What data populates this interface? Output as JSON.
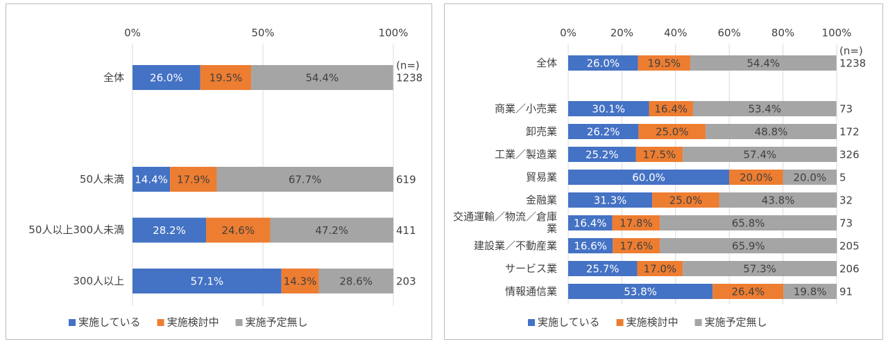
{
  "chart_data": [
    {
      "type": "stacked-bar-horizontal",
      "categories": [
        "全体",
        null,
        "50人未満",
        "50人以上300人未満",
        "300人以上"
      ],
      "series": [
        {
          "name": "実施している",
          "color": "#4472c4",
          "values": [
            26.0,
            null,
            14.4,
            28.2,
            57.1
          ],
          "value_labels": [
            "26.0%",
            null,
            "14.4%",
            "28.2%",
            "57.1%"
          ]
        },
        {
          "name": "実施検討中",
          "color": "#ed7d31",
          "values": [
            19.5,
            null,
            17.9,
            24.6,
            14.3
          ],
          "value_labels": [
            "19.5%",
            null,
            "17.9%",
            "24.6%",
            "14.3%"
          ]
        },
        {
          "name": "実施予定無し",
          "color": "#a5a5a5",
          "values": [
            54.4,
            null,
            67.7,
            47.2,
            28.6
          ],
          "value_labels": [
            "54.4%",
            null,
            "67.7%",
            "47.2%",
            "28.6%"
          ]
        }
      ],
      "n_label": "(n=)",
      "n": [
        1238,
        null,
        619,
        411,
        203
      ],
      "xlim": [
        0,
        100
      ],
      "xticks": [
        {
          "value": 0,
          "label": "0%"
        },
        {
          "value": 50,
          "label": "50%"
        },
        {
          "value": 100,
          "label": "100%"
        }
      ],
      "grid": true,
      "legend": "bottom"
    },
    {
      "type": "stacked-bar-horizontal",
      "categories": [
        "全体",
        null,
        "商業／小売業",
        "卸売業",
        "工業／製造業",
        "貿易業",
        "金融業",
        "交通運輸／物流／倉庫業",
        "建設業／不動産業",
        "サービス業",
        "情報通信業"
      ],
      "series": [
        {
          "name": "実施している",
          "color": "#4472c4",
          "values": [
            26.0,
            null,
            30.1,
            26.2,
            25.2,
            60.0,
            31.3,
            16.4,
            16.6,
            25.7,
            53.8
          ],
          "value_labels": [
            "26.0%",
            null,
            "30.1%",
            "26.2%",
            "25.2%",
            "60.0%",
            "31.3%",
            "16.4%",
            "16.6%",
            "25.7%",
            "53.8%"
          ]
        },
        {
          "name": "実施検討中",
          "color": "#ed7d31",
          "values": [
            19.5,
            null,
            16.4,
            25.0,
            17.5,
            20.0,
            25.0,
            17.8,
            17.6,
            17.0,
            26.4
          ],
          "value_labels": [
            "19.5%",
            null,
            "16.4%",
            "25.0%",
            "17.5%",
            "20.0%",
            "25.0%",
            "17.8%",
            "17.6%",
            "17.0%",
            "26.4%"
          ]
        },
        {
          "name": "実施予定無し",
          "color": "#a5a5a5",
          "values": [
            54.4,
            null,
            53.4,
            48.8,
            57.4,
            20.0,
            43.8,
            65.8,
            65.9,
            57.3,
            19.8
          ],
          "value_labels": [
            "54.4%",
            null,
            "53.4%",
            "48.8%",
            "57.4%",
            "20.0%",
            "43.8%",
            "65.8%",
            "65.9%",
            "57.3%",
            "19.8%"
          ]
        }
      ],
      "n_label": "(n=)",
      "n": [
        1238,
        null,
        73,
        172,
        326,
        5,
        32,
        73,
        205,
        206,
        91
      ],
      "xlim": [
        0,
        100
      ],
      "xticks": [
        {
          "value": 0,
          "label": "0%"
        },
        {
          "value": 20,
          "label": "20%"
        },
        {
          "value": 40,
          "label": "40%"
        },
        {
          "value": 60,
          "label": "60%"
        },
        {
          "value": 80,
          "label": "80%"
        },
        {
          "value": 100,
          "label": "100%"
        }
      ],
      "grid": true,
      "legend": "bottom"
    }
  ]
}
